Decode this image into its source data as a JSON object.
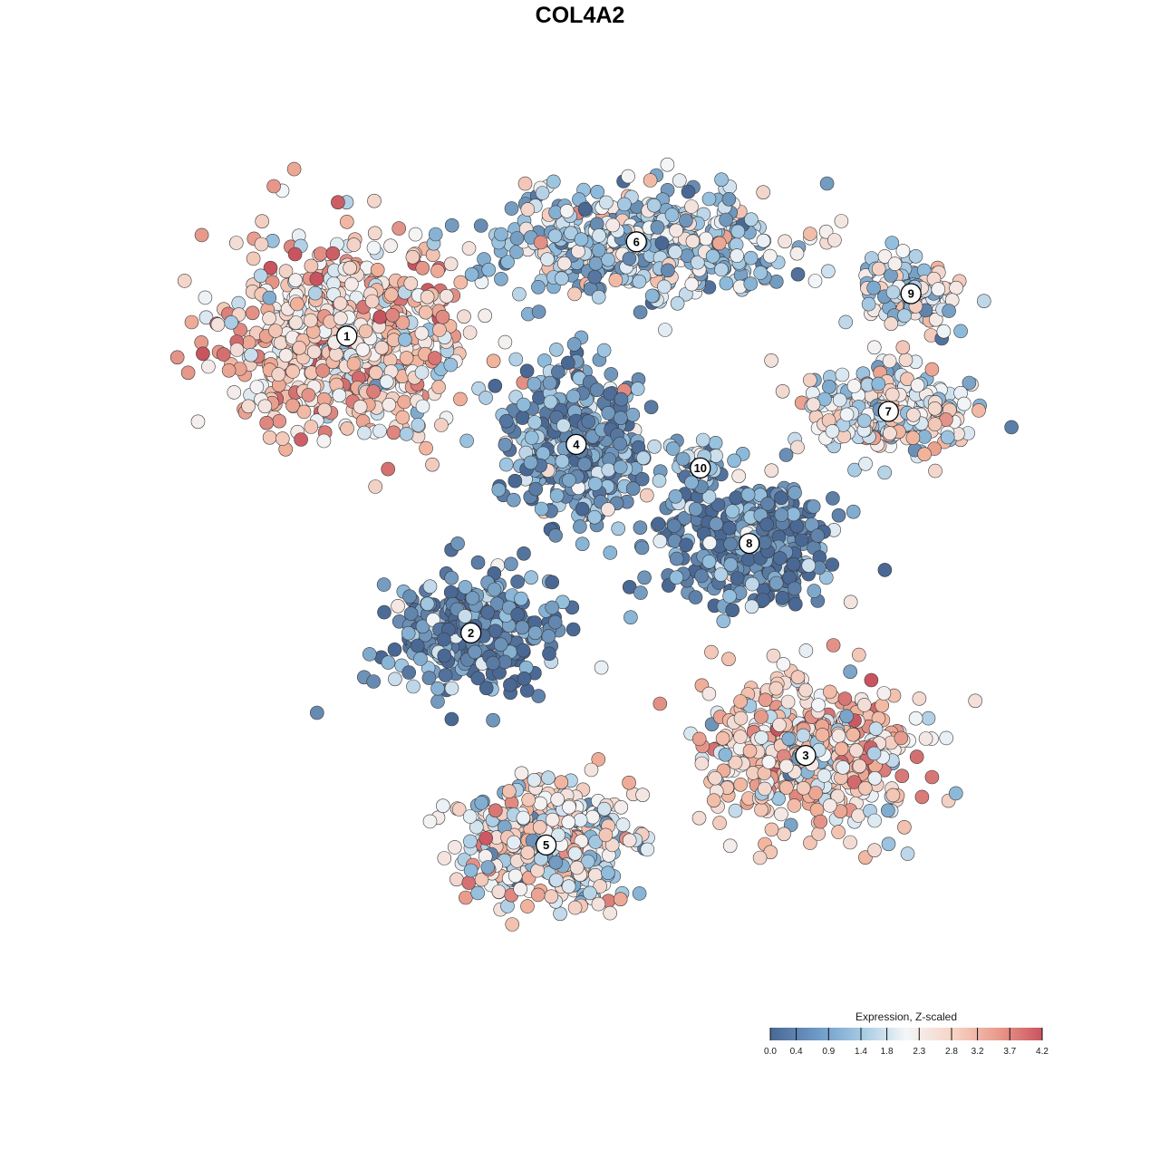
{
  "chart_data": {
    "type": "scatter",
    "title": "COL4A2",
    "xlabel": "",
    "ylabel": "",
    "colors": {
      "low": "#4a6894",
      "mid_low": "#8fbcdc",
      "mid": "#f4f6f8",
      "mid_high": "#f2b49d",
      "high": "#c9545f",
      "outline": "#3a3a3a"
    },
    "legend": {
      "title": "Expression, Z-scaled",
      "placement": "bottom-right",
      "min": 0.0,
      "max": 4.2,
      "ticks": [
        0.0,
        0.4,
        0.9,
        1.4,
        1.8,
        2.3,
        2.8,
        3.2,
        3.7,
        4.2
      ],
      "tick_labels": [
        "0.0",
        "0.4",
        "0.9",
        "1.4",
        "1.8",
        "2.3",
        "2.8",
        "3.2",
        "3.7",
        "4.2"
      ]
    },
    "clusters": [
      {
        "id": "1",
        "x": -6.2,
        "y": 4.6,
        "mean_expression": 2.7
      },
      {
        "id": "2",
        "x": -2.9,
        "y": -1.7,
        "mean_expression": 0.6
      },
      {
        "id": "3",
        "x": 6.0,
        "y": -4.3,
        "mean_expression": 2.6
      },
      {
        "id": "4",
        "x": -0.1,
        "y": 2.3,
        "mean_expression": 0.8
      },
      {
        "id": "5",
        "x": -0.9,
        "y": -6.2,
        "mean_expression": 2.2
      },
      {
        "id": "6",
        "x": 1.5,
        "y": 6.6,
        "mean_expression": 1.6
      },
      {
        "id": "7",
        "x": 8.2,
        "y": 3.0,
        "mean_expression": 2.1
      },
      {
        "id": "8",
        "x": 4.5,
        "y": 0.2,
        "mean_expression": 0.5
      },
      {
        "id": "9",
        "x": 8.8,
        "y": 5.5,
        "mean_expression": 1.8
      },
      {
        "id": "10",
        "x": 3.2,
        "y": 1.8,
        "mean_expression": 1.2
      }
    ]
  }
}
